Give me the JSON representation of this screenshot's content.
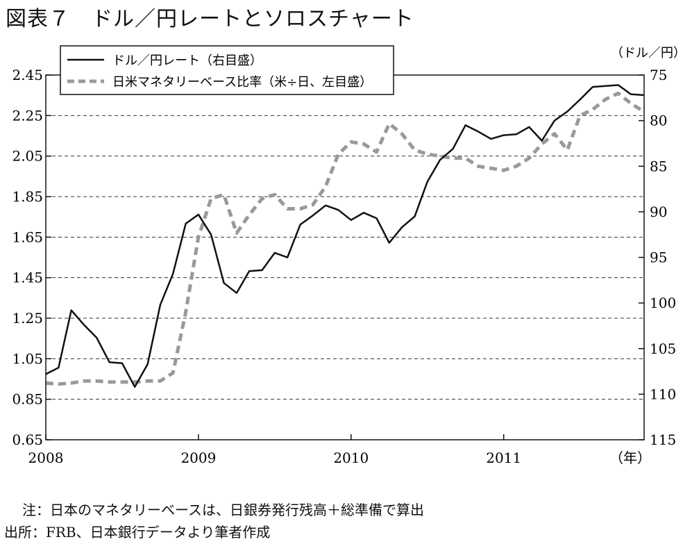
{
  "title": "図表７　ドル／円レートとソロスチャート",
  "note": "注：日本のマネタリーベースは、日銀券発行残高＋総準備で算出",
  "source": "出所：FRB、日本銀行データより筆者作成",
  "chart_data": {
    "type": "line",
    "x_ticks": [
      "2008",
      "2009",
      "2010",
      "2011"
    ],
    "x_unit_label": "（年）",
    "x_range": [
      2008.0,
      2011.92
    ],
    "left_axis": {
      "ticks": [
        "0.65",
        "0.85",
        "1.05",
        "1.25",
        "1.45",
        "1.65",
        "1.85",
        "2.05",
        "2.25",
        "2.45"
      ],
      "ylim": [
        0.65,
        2.45
      ]
    },
    "right_axis": {
      "unit_label": "（ドル／円）",
      "ticks": [
        "75",
        "80",
        "85",
        "90",
        "95",
        "100",
        "105",
        "110",
        "115"
      ],
      "ylim": [
        115,
        75
      ],
      "inverted": true
    },
    "grid": "horizontal dashed",
    "legend_position": "top-left",
    "series": [
      {
        "name": "ドル／円レート（右目盛）",
        "axis": "right",
        "style": "solid",
        "color": "#111111",
        "x": [
          2008.0,
          2008.083,
          2008.167,
          2008.25,
          2008.333,
          2008.417,
          2008.5,
          2008.583,
          2008.667,
          2008.75,
          2008.833,
          2008.917,
          2009.0,
          2009.083,
          2009.167,
          2009.25,
          2009.333,
          2009.417,
          2009.5,
          2009.583,
          2009.667,
          2009.75,
          2009.833,
          2009.917,
          2010.0,
          2010.083,
          2010.167,
          2010.25,
          2010.333,
          2010.417,
          2010.5,
          2010.583,
          2010.667,
          2010.75,
          2010.833,
          2010.917,
          2011.0,
          2011.083,
          2011.167,
          2011.25,
          2011.333,
          2011.417,
          2011.5,
          2011.583,
          2011.667,
          2011.75,
          2011.833,
          2011.917
        ],
        "values": [
          107.8,
          107.1,
          100.8,
          102.4,
          103.8,
          106.5,
          106.6,
          109.2,
          106.7,
          100.2,
          96.8,
          91.3,
          90.3,
          92.5,
          97.8,
          98.9,
          96.5,
          96.4,
          94.5,
          95.0,
          91.4,
          90.4,
          89.3,
          89.8,
          90.9,
          90.1,
          90.7,
          93.4,
          91.7,
          90.5,
          86.7,
          84.3,
          83.1,
          80.5,
          81.2,
          82.0,
          81.6,
          81.5,
          80.7,
          82.2,
          80.0,
          79.0,
          77.7,
          76.3,
          76.2,
          76.1,
          77.1,
          77.2
        ]
      },
      {
        "name": "日米マネタリーベース比率（米÷日、左目盛）",
        "axis": "left",
        "style": "dashed",
        "color": "#999999",
        "x": [
          2008.0,
          2008.083,
          2008.167,
          2008.25,
          2008.333,
          2008.417,
          2008.5,
          2008.583,
          2008.667,
          2008.75,
          2008.833,
          2008.917,
          2009.0,
          2009.083,
          2009.167,
          2009.25,
          2009.333,
          2009.417,
          2009.5,
          2009.583,
          2009.667,
          2009.75,
          2009.833,
          2009.917,
          2010.0,
          2010.083,
          2010.167,
          2010.25,
          2010.333,
          2010.417,
          2010.5,
          2010.583,
          2010.667,
          2010.75,
          2010.833,
          2010.917,
          2011.0,
          2011.083,
          2011.167,
          2011.25,
          2011.333,
          2011.417,
          2011.5,
          2011.583,
          2011.667,
          2011.75,
          2011.833,
          2011.917
        ],
        "values": [
          0.93,
          0.925,
          0.93,
          0.94,
          0.94,
          0.935,
          0.935,
          0.935,
          0.94,
          0.94,
          0.98,
          1.28,
          1.65,
          1.84,
          1.86,
          1.67,
          1.76,
          1.84,
          1.86,
          1.79,
          1.79,
          1.81,
          1.9,
          2.06,
          2.12,
          2.11,
          2.07,
          2.21,
          2.16,
          2.08,
          2.06,
          2.05,
          2.04,
          2.04,
          2.0,
          1.99,
          1.98,
          2.0,
          2.04,
          2.11,
          2.16,
          2.08,
          2.25,
          2.28,
          2.33,
          2.36,
          2.31,
          2.27
        ]
      }
    ]
  }
}
